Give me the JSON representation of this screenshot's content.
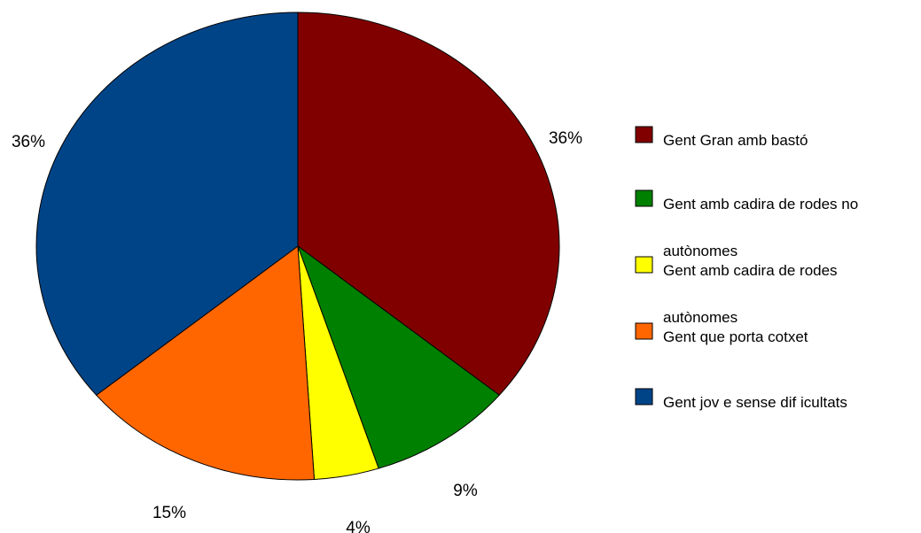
{
  "chart_data": {
    "type": "pie",
    "title": "",
    "slices": [
      {
        "label": "Gent Gran amb bastó",
        "label_lines": [
          "Gent Gran amb bastó"
        ],
        "value": 36,
        "display": "36%",
        "color": "#800000"
      },
      {
        "label": "Gent amb cadira de rodes no autònomes",
        "label_lines": [
          "Gent amb cadira de rodes no",
          "autònomes"
        ],
        "value": 9,
        "display": "9%",
        "color": "#008000"
      },
      {
        "label": "Gent amb cadira de rodes autònomes",
        "label_lines": [
          "Gent amb cadira de rodes",
          "autònomes"
        ],
        "value": 4,
        "display": "4%",
        "color": "#FFFF00"
      },
      {
        "label": "Gent que porta cotxet",
        "label_lines": [
          "Gent que porta cotxet"
        ],
        "value": 15,
        "display": "15%",
        "color": "#FF6600"
      },
      {
        "label": "Gent jove sense dificultats",
        "label_lines": [
          "Gent jov e sense dif icultats"
        ],
        "value": 36,
        "display": "36%",
        "color": "#004488"
      }
    ],
    "legend_position": "right"
  }
}
